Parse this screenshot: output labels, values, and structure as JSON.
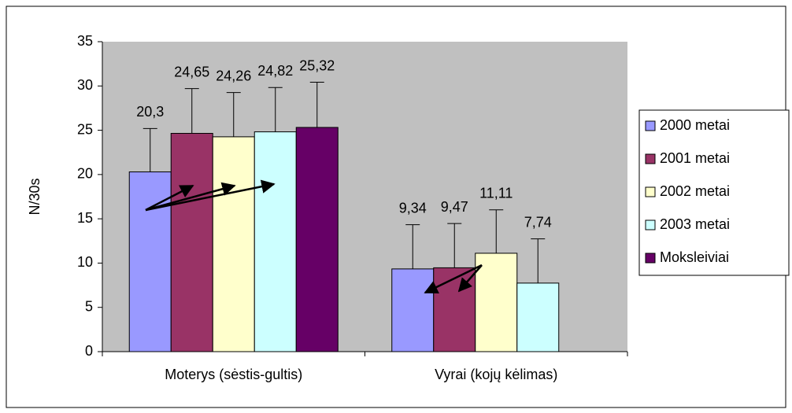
{
  "chart_data": {
    "type": "bar",
    "y_label": "N/30s",
    "categories": [
      "Moterys (sėstis-gultis)",
      "Vyrai (kojų kėlimas)"
    ],
    "series": [
      {
        "name": "2000 metai",
        "color": "#9999ff",
        "values": [
          20.3,
          9.34
        ],
        "value_labels": [
          "20,3",
          "9,34"
        ],
        "errors": [
          4.9,
          5.0
        ]
      },
      {
        "name": "2001 metai",
        "color": "#993366",
        "values": [
          24.65,
          9.47
        ],
        "value_labels": [
          "24,65",
          "9,47"
        ],
        "errors": [
          5.05,
          5.0
        ]
      },
      {
        "name": "2002 metai",
        "color": "#ffffcc",
        "values": [
          24.26,
          11.11
        ],
        "value_labels": [
          "24,26",
          "11,11"
        ],
        "errors": [
          5.0,
          4.9
        ]
      },
      {
        "name": "2003 metai",
        "color": "#ccffff",
        "values": [
          24.82,
          7.74
        ],
        "value_labels": [
          "24,82",
          "7,74"
        ],
        "errors": [
          5.0,
          5.0
        ]
      },
      {
        "name": "Moksleiviai",
        "color": "#660066",
        "values": [
          25.32,
          null
        ],
        "value_labels": [
          "25,32",
          null
        ],
        "errors": [
          5.1,
          null
        ]
      }
    ],
    "ylim": [
      0,
      35
    ],
    "yticks": [
      0,
      5,
      10,
      15,
      20,
      25,
      30,
      35
    ],
    "grid": false,
    "legend": "right"
  }
}
